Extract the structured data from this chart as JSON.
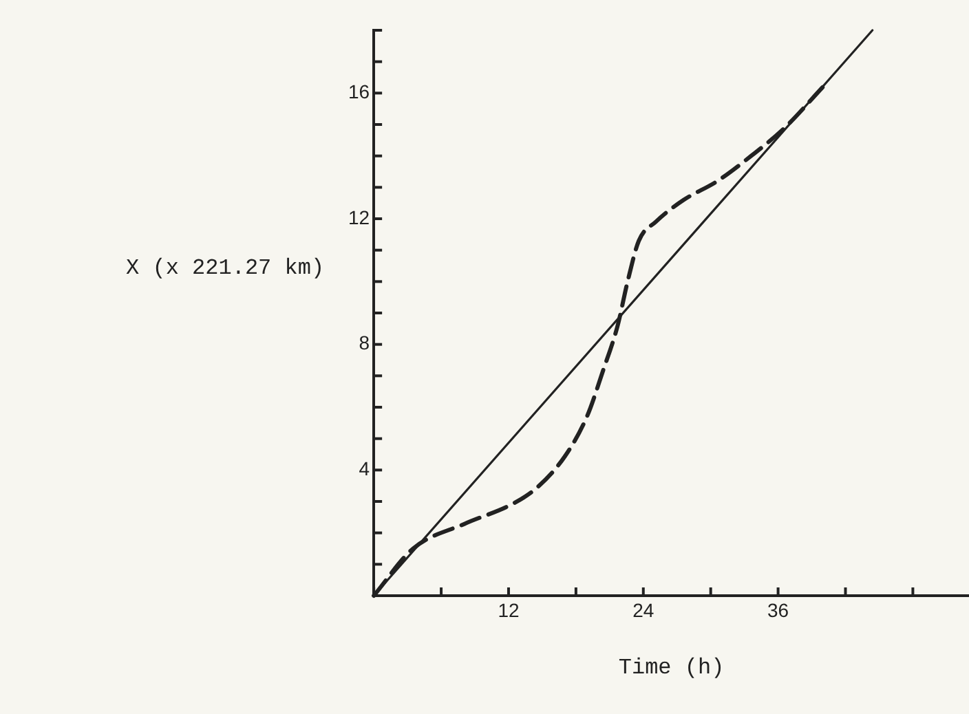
{
  "chart_data": {
    "type": "line",
    "xlabel": "Time (h)",
    "ylabel": "X (x 221.27 km)",
    "xlim": [
      0,
      53
    ],
    "ylim": [
      0,
      18
    ],
    "xticks": [
      {
        "value": 0,
        "label": null
      },
      {
        "value": 6,
        "label": null
      },
      12,
      {
        "value": 18,
        "label": null
      },
      24,
      {
        "value": 30,
        "label": null
      },
      36,
      {
        "value": 42,
        "label": null
      },
      {
        "value": 48,
        "label": null
      }
    ],
    "yticks": [
      {
        "value": 0,
        "label": null
      },
      {
        "value": 1,
        "label": null
      },
      {
        "value": 2,
        "label": null
      },
      {
        "value": 3,
        "label": null
      },
      4,
      {
        "value": 5,
        "label": null
      },
      {
        "value": 6,
        "label": null
      },
      {
        "value": 7,
        "label": null
      },
      8,
      {
        "value": 9,
        "label": null
      },
      {
        "value": 10,
        "label": null
      },
      {
        "value": 11,
        "label": null
      },
      12,
      {
        "value": 13,
        "label": null
      },
      {
        "value": 14,
        "label": null
      },
      {
        "value": 15,
        "label": null
      },
      16,
      {
        "value": 17,
        "label": null
      },
      {
        "value": 18,
        "label": null
      }
    ],
    "grid": false,
    "legend": false,
    "marker": "none",
    "series": [
      {
        "type": "line",
        "color": "#222222",
        "line_style": "solid",
        "x": [
          0,
          44.4
        ],
        "values": [
          0,
          18
        ]
      },
      {
        "type": "line",
        "color": "#222222",
        "line_style": "dashed",
        "x": [
          0,
          3.5,
          8.1,
          12.4,
          14.5,
          17.0,
          19.0,
          20.4,
          21.7,
          22.6,
          23.6,
          25.1,
          27.6,
          30.6,
          33.6,
          36.6,
          40.0
        ],
        "values": [
          0,
          1.5,
          2.29,
          2.93,
          3.43,
          4.43,
          5.72,
          7.15,
          8.58,
          10.0,
          11.3,
          11.9,
          12.6,
          13.2,
          14.0,
          14.9,
          16.2
        ]
      }
    ]
  }
}
